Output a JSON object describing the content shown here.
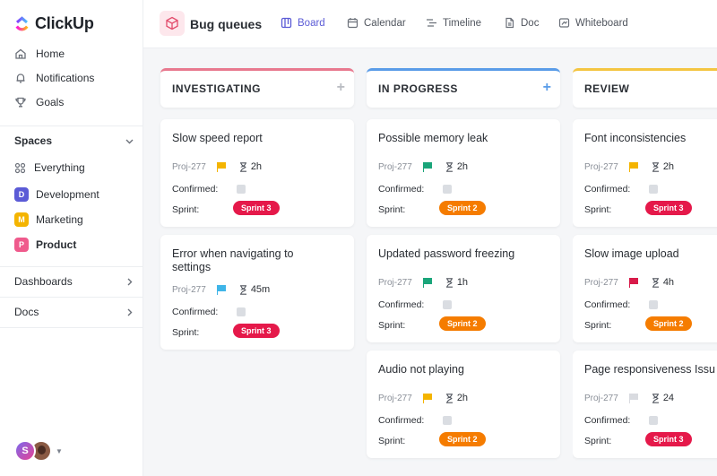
{
  "app": {
    "name": "ClickUp"
  },
  "sidebar": {
    "nav": [
      {
        "label": "Home",
        "icon": "home-icon"
      },
      {
        "label": "Notifications",
        "icon": "bell-icon"
      },
      {
        "label": "Goals",
        "icon": "trophy-icon"
      }
    ],
    "spaces_label": "Spaces",
    "spaces": [
      {
        "label": "Everything",
        "icon": "grid-icon"
      },
      {
        "label": "Development",
        "badge": "D",
        "color": "#5b5bd6"
      },
      {
        "label": "Marketing",
        "badge": "M",
        "color": "#f4b400"
      },
      {
        "label": "Product",
        "badge": "P",
        "color": "#ef5a8c"
      }
    ],
    "dashboards_label": "Dashboards",
    "docs_label": "Docs",
    "avatar_initial": "S"
  },
  "header": {
    "title": "Bug queues",
    "tabs": [
      {
        "label": "Board",
        "icon": "board-icon",
        "active": true
      },
      {
        "label": "Calendar",
        "icon": "calendar-icon"
      },
      {
        "label": "Timeline",
        "icon": "timeline-icon"
      },
      {
        "label": "Doc",
        "icon": "doc-icon"
      },
      {
        "label": "Whiteboard",
        "icon": "whiteboard-icon"
      }
    ]
  },
  "board": {
    "field_confirmed": "Confirmed:",
    "field_sprint": "Sprint:",
    "columns": [
      {
        "title": "INVESTIGATING",
        "color": "#e8798f",
        "add_color": "#b9bcc2",
        "cards": [
          {
            "title": "Slow speed report",
            "id": "Proj-277",
            "flag_color": "#f4b400",
            "time": "2h",
            "sprint": "Sprint 3",
            "sprint_color": "#e5194a"
          },
          {
            "title": "Error when navigating to settings",
            "id": "Proj-277",
            "flag_color": "#3fb5e8",
            "time": "45m",
            "sprint": "Sprint 3",
            "sprint_color": "#e5194a"
          }
        ]
      },
      {
        "title": "IN PROGRESS",
        "color": "#5a9ce8",
        "add_color": "#5a9ce8",
        "cards": [
          {
            "title": "Possible memory leak",
            "id": "Proj-277",
            "flag_color": "#1aa57a",
            "time": "2h",
            "sprint": "Sprint 2",
            "sprint_color": "#f57c00"
          },
          {
            "title": "Updated password freezing",
            "id": "Proj-277",
            "flag_color": "#1aa57a",
            "time": "1h",
            "sprint": "Sprint 2",
            "sprint_color": "#f57c00"
          },
          {
            "title": "Audio not playing",
            "id": "Proj-277",
            "flag_color": "#f4b400",
            "time": "2h",
            "sprint": "Sprint 2",
            "sprint_color": "#f57c00"
          }
        ]
      },
      {
        "title": "REVIEW",
        "color": "#f4c542",
        "add_color": "#b9bcc2",
        "cards": [
          {
            "title": "Font inconsistencies",
            "id": "Proj-277",
            "flag_color": "#f4b400",
            "time": "2h",
            "sprint": "Sprint 3",
            "sprint_color": "#e5194a"
          },
          {
            "title": "Slow image upload",
            "id": "Proj-277",
            "flag_color": "#d81b4a",
            "time": "4h",
            "sprint": "Sprint 2",
            "sprint_color": "#f57c00"
          },
          {
            "title": "Page responsiveness Issu",
            "id": "Proj-277",
            "flag_color": "#d9dbe0",
            "time": "24",
            "sprint": "Sprint 3",
            "sprint_color": "#e5194a"
          }
        ]
      }
    ]
  }
}
